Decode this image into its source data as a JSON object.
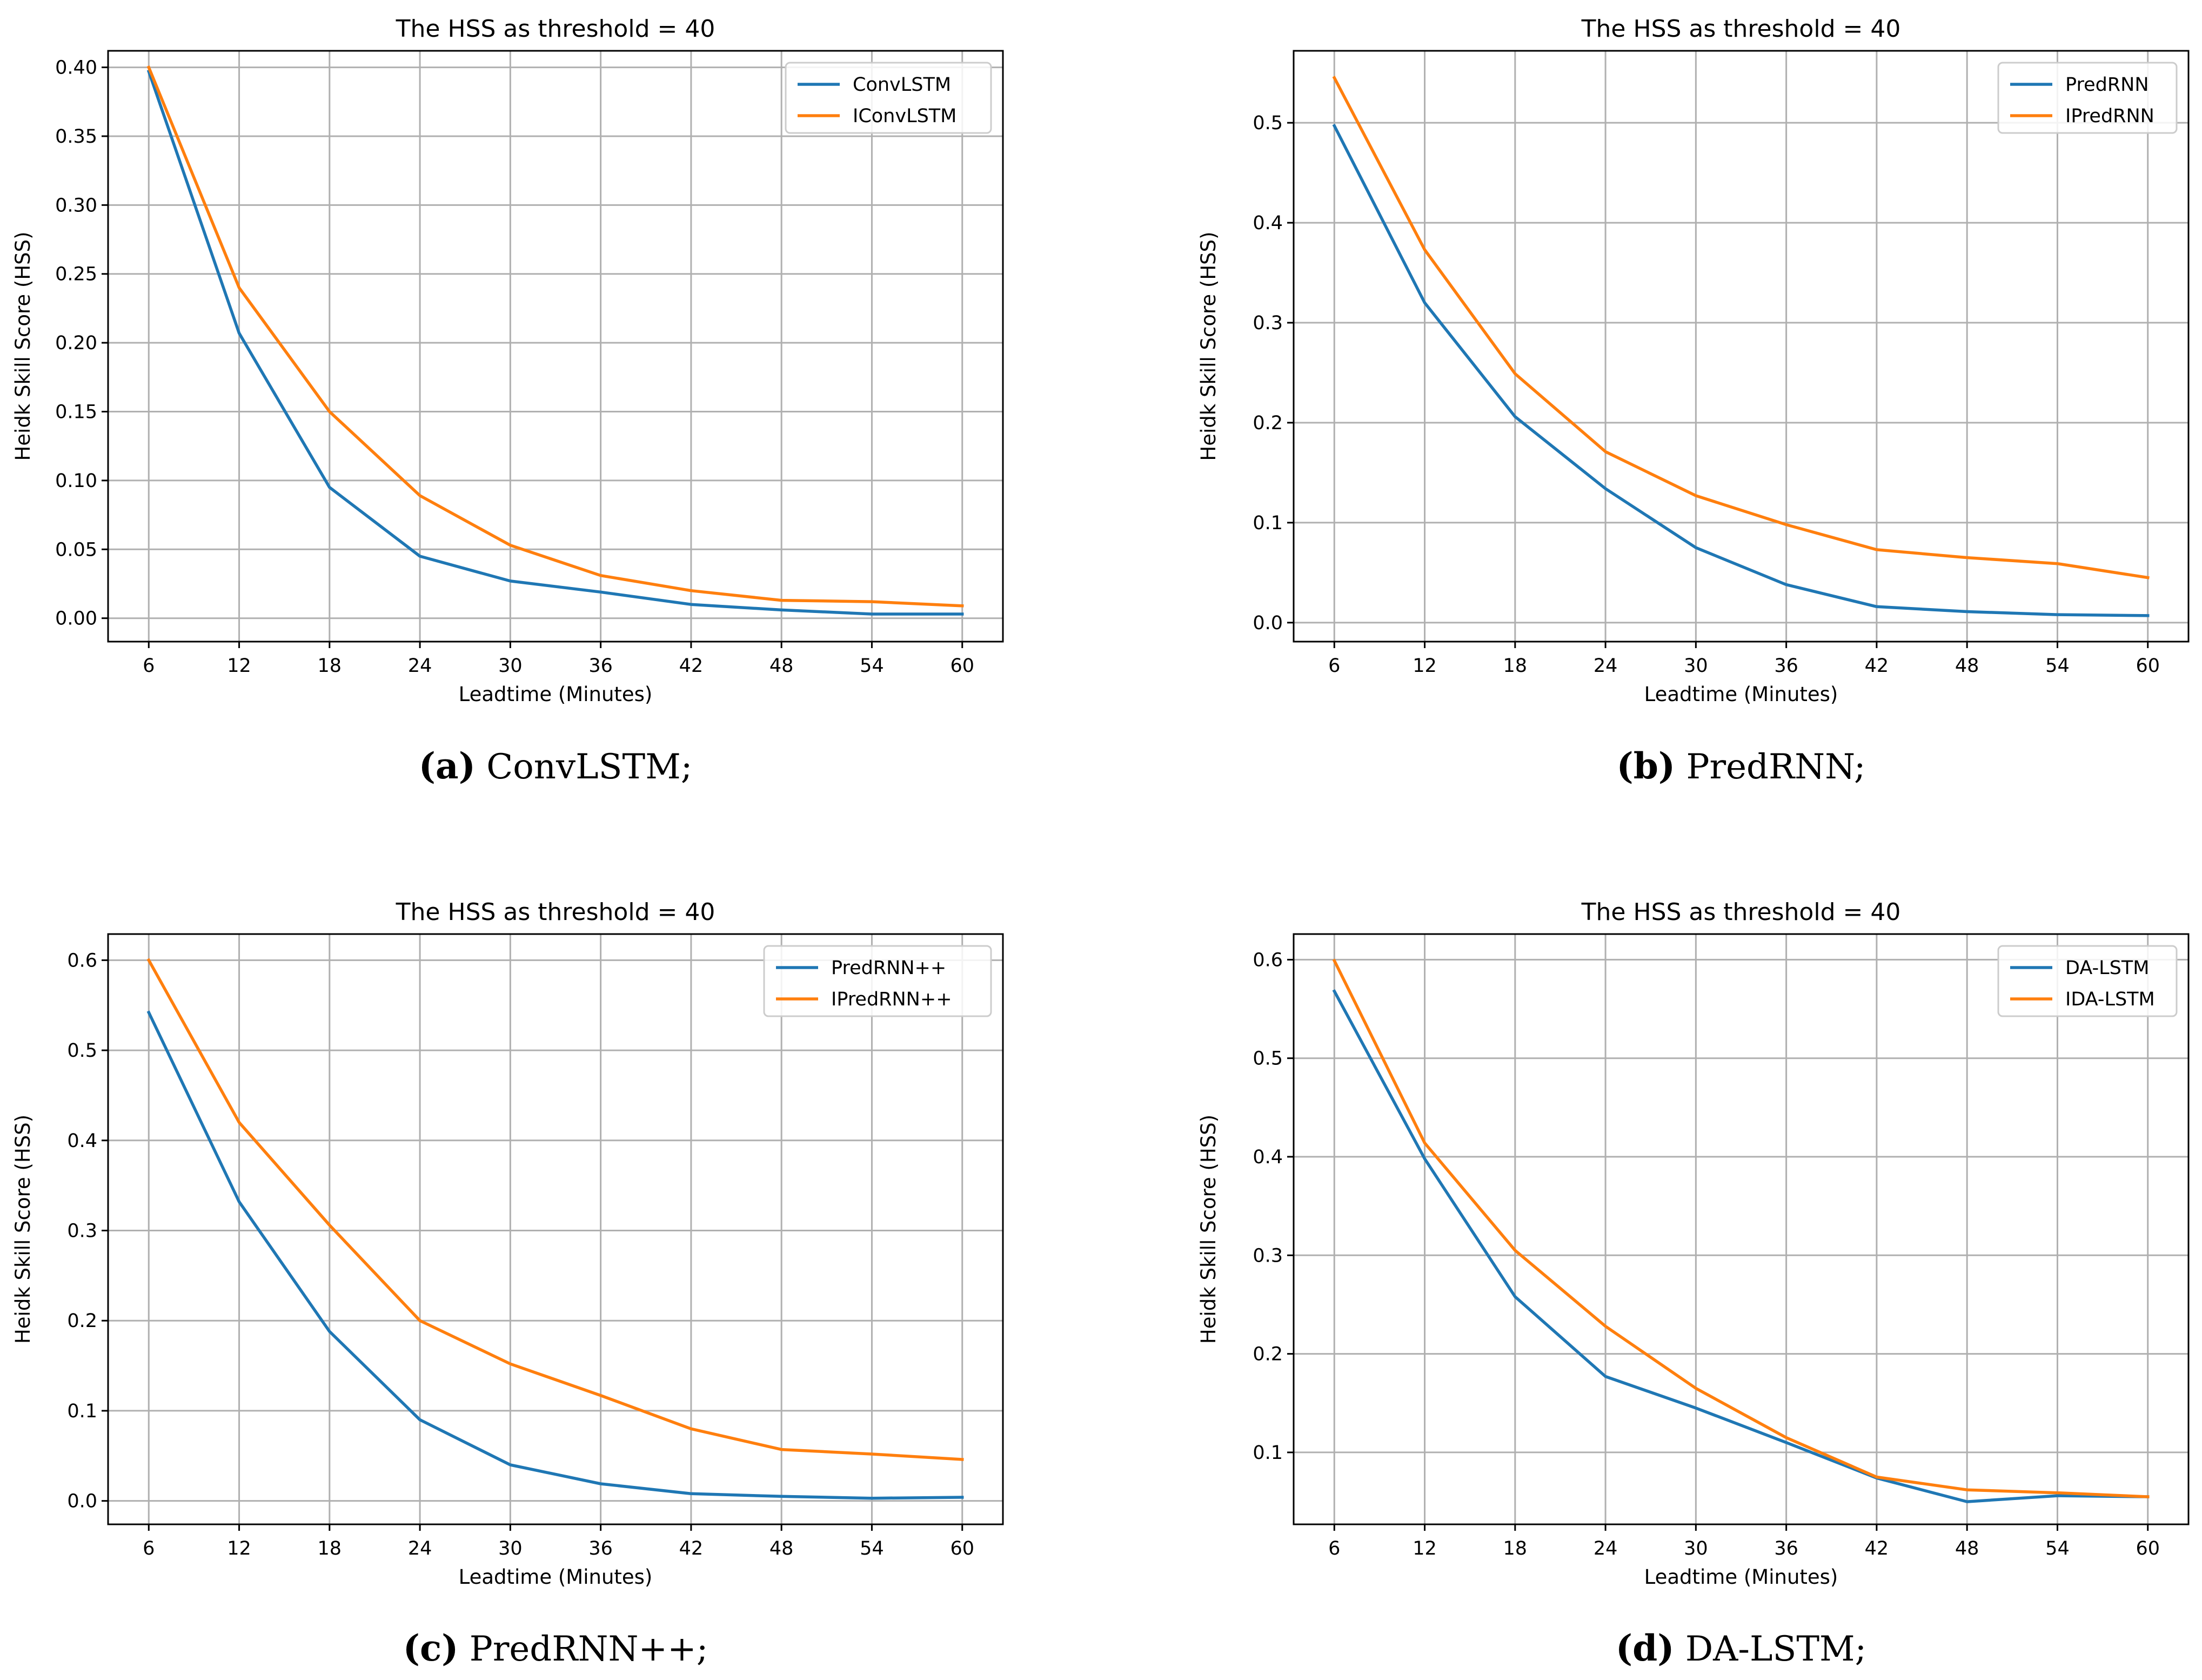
{
  "chart_data": [
    {
      "type": "line",
      "title": "The HSS as threshold = 40",
      "xlabel": "Leadtime (Minutes)",
      "ylabel": "Heidk Skill Score (HSS)",
      "x": [
        6,
        12,
        18,
        24,
        30,
        36,
        42,
        48,
        54,
        60
      ],
      "xticks": [
        "6",
        "12",
        "18",
        "24",
        "30",
        "36",
        "42",
        "48",
        "54",
        "60"
      ],
      "yticks": [
        0.0,
        0.05,
        0.1,
        0.15,
        0.2,
        0.25,
        0.3,
        0.35,
        0.4
      ],
      "ytick_labels": [
        "0.00",
        "0.05",
        "0.10",
        "0.15",
        "0.20",
        "0.25",
        "0.30",
        "0.35",
        "0.40"
      ],
      "ylim": [
        -0.017,
        0.412
      ],
      "xlim": [
        3.3,
        62.7
      ],
      "grid": true,
      "legend": "top-right",
      "series": [
        {
          "name": "ConvLSTM",
          "color": "#1f77b4",
          "values": [
            0.397,
            0.207,
            0.095,
            0.045,
            0.027,
            0.019,
            0.01,
            0.006,
            0.003,
            0.003
          ]
        },
        {
          "name": "IConvLSTM",
          "color": "#ff7f0e",
          "values": [
            0.4,
            0.24,
            0.15,
            0.089,
            0.053,
            0.031,
            0.02,
            0.013,
            0.012,
            0.009
          ]
        }
      ],
      "caption_letter": "(a)",
      "caption_text": " ConvLSTM;"
    },
    {
      "type": "line",
      "title": "The HSS as threshold = 40",
      "xlabel": "Leadtime (Minutes)",
      "ylabel": "Heidk Skill Score (HSS)",
      "x": [
        6,
        12,
        18,
        24,
        30,
        36,
        42,
        48,
        54,
        60
      ],
      "xticks": [
        "6",
        "12",
        "18",
        "24",
        "30",
        "36",
        "42",
        "48",
        "54",
        "60"
      ],
      "yticks": [
        0.0,
        0.1,
        0.2,
        0.3,
        0.4,
        0.5
      ],
      "ytick_labels": [
        "0.0",
        "0.1",
        "0.2",
        "0.3",
        "0.4",
        "0.5"
      ],
      "ylim": [
        -0.019,
        0.572
      ],
      "xlim": [
        3.3,
        62.7
      ],
      "grid": true,
      "legend": "top-right",
      "series": [
        {
          "name": "PredRNN",
          "color": "#1f77b4",
          "values": [
            0.497,
            0.32,
            0.206,
            0.134,
            0.075,
            0.038,
            0.016,
            0.011,
            0.008,
            0.007
          ]
        },
        {
          "name": "IPredRNN",
          "color": "#ff7f0e",
          "values": [
            0.545,
            0.373,
            0.249,
            0.171,
            0.127,
            0.098,
            0.073,
            0.065,
            0.059,
            0.045
          ]
        }
      ],
      "caption_letter": "(b)",
      "caption_text": " PredRNN;"
    },
    {
      "type": "line",
      "title": "The HSS as threshold = 40",
      "xlabel": "Leadtime (Minutes)",
      "ylabel": "Heidk Skill Score (HSS)",
      "x": [
        6,
        12,
        18,
        24,
        30,
        36,
        42,
        48,
        54,
        60
      ],
      "xticks": [
        "6",
        "12",
        "18",
        "24",
        "30",
        "36",
        "42",
        "48",
        "54",
        "60"
      ],
      "yticks": [
        0.0,
        0.1,
        0.2,
        0.3,
        0.4,
        0.5,
        0.6
      ],
      "ytick_labels": [
        "0.0",
        "0.1",
        "0.2",
        "0.3",
        "0.4",
        "0.5",
        "0.6"
      ],
      "ylim": [
        -0.026,
        0.629
      ],
      "xlim": [
        3.3,
        62.7
      ],
      "grid": true,
      "legend": "top-right",
      "series": [
        {
          "name": "PredRNN++",
          "color": "#1f77b4",
          "values": [
            0.542,
            0.332,
            0.188,
            0.09,
            0.04,
            0.019,
            0.008,
            0.005,
            0.003,
            0.004
          ]
        },
        {
          "name": "IPredRNN++",
          "color": "#ff7f0e",
          "values": [
            0.6,
            0.42,
            0.306,
            0.2,
            0.152,
            0.117,
            0.08,
            0.057,
            0.052,
            0.046
          ]
        }
      ],
      "caption_letter": "(c)",
      "caption_text": " PredRNN++;"
    },
    {
      "type": "line",
      "title": "The HSS as threshold = 40",
      "xlabel": "Leadtime (Minutes)",
      "ylabel": "Heidk Skill Score (HSS)",
      "x": [
        6,
        12,
        18,
        24,
        30,
        36,
        42,
        48,
        54,
        60
      ],
      "xticks": [
        "6",
        "12",
        "18",
        "24",
        "30",
        "36",
        "42",
        "48",
        "54",
        "60"
      ],
      "yticks": [
        0.1,
        0.2,
        0.3,
        0.4,
        0.5,
        0.6
      ],
      "ytick_labels": [
        "0.1",
        "0.2",
        "0.3",
        "0.4",
        "0.5",
        "0.6"
      ],
      "ylim": [
        0.027,
        0.626
      ],
      "xlim": [
        3.3,
        62.7
      ],
      "grid": true,
      "legend": "top-right",
      "series": [
        {
          "name": "DA-LSTM",
          "color": "#1f77b4",
          "values": [
            0.568,
            0.398,
            0.258,
            0.177,
            0.145,
            0.11,
            0.074,
            0.05,
            0.056,
            0.055
          ]
        },
        {
          "name": "IDA-LSTM",
          "color": "#ff7f0e",
          "values": [
            0.599,
            0.414,
            0.305,
            0.228,
            0.165,
            0.115,
            0.075,
            0.062,
            0.059,
            0.055
          ]
        }
      ],
      "caption_letter": "(d)",
      "caption_text": " DA-LSTM;"
    }
  ]
}
